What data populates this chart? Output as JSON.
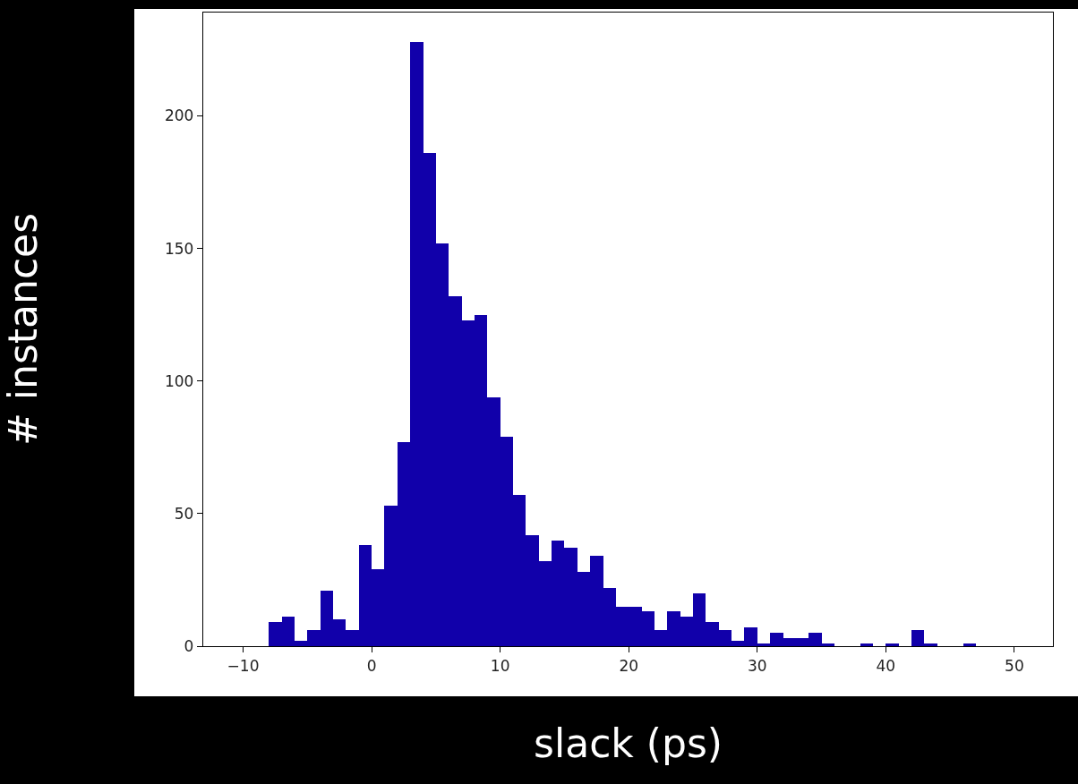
{
  "chart_data": {
    "type": "histogram",
    "xlabel": "slack (ps)",
    "ylabel": "# instances",
    "color": "#1100aa",
    "bins": [
      -8,
      -7,
      -6,
      -5,
      -4,
      -3,
      -2,
      -1,
      0,
      1,
      2,
      3,
      4,
      5,
      6,
      7,
      8,
      9,
      10,
      11,
      12,
      13,
      14,
      15,
      16,
      17,
      18,
      19,
      20,
      21,
      22,
      23,
      24,
      25,
      26,
      27,
      28,
      29,
      30,
      31,
      32,
      33,
      34,
      35,
      36,
      37,
      38,
      39,
      40,
      41,
      42,
      43,
      44,
      45,
      46,
      47
    ],
    "values": [
      9,
      11,
      2,
      6,
      21,
      10,
      6,
      38,
      29,
      53,
      77,
      228,
      186,
      152,
      132,
      123,
      125,
      94,
      79,
      57,
      42,
      32,
      40,
      37,
      28,
      34,
      22,
      15,
      15,
      13,
      6,
      13,
      11,
      20,
      9,
      6,
      2,
      7,
      1,
      5,
      3,
      3,
      5,
      1,
      0,
      0,
      1,
      0,
      1,
      0,
      6,
      1,
      0,
      0,
      1
    ],
    "xlim": [
      -13.1,
      53
    ],
    "xticks": [
      -10,
      0,
      10,
      20,
      30,
      40,
      50
    ],
    "ylim": [
      0,
      239
    ],
    "yticks": [
      0,
      50,
      100,
      150,
      200
    ],
    "grid": false
  }
}
